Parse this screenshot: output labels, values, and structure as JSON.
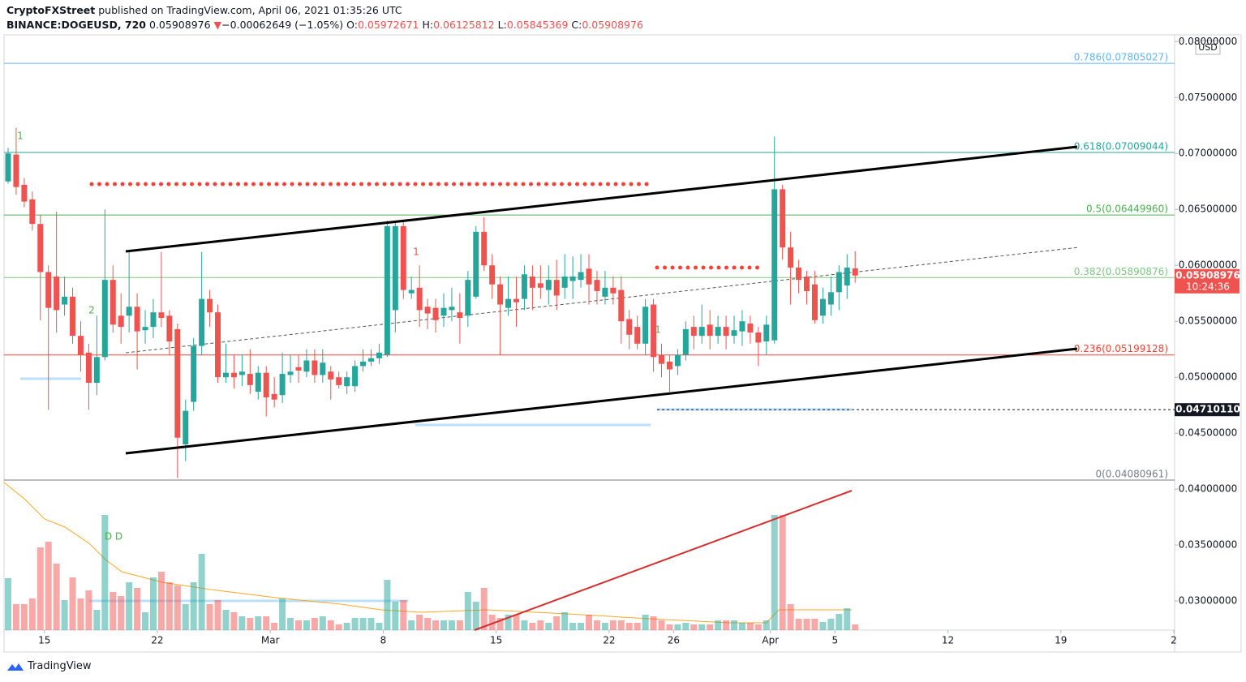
{
  "header": {
    "publisher": "CryptoFXStreet",
    "published": "published on TradingView.com, April 06, 2021 01:35:26 UTC"
  },
  "footer": {
    "brand": "TradingView"
  },
  "chart_data": {
    "type": "candlestick",
    "symbol": "BINANCE:DOGEUSD, 720",
    "change_arrow": "▼",
    "change": "−0.00062649 (−1.05%)",
    "ohlc_labels": [
      "O:",
      "H:",
      "L:",
      "C:"
    ],
    "currency": "USD",
    "countdown": "10:24:36",
    "up_color": "#26a69a",
    "down_color": "#ef5350",
    "xlim": [
      -0.5,
      144.6
    ],
    "xticks": [
      {
        "value": 4.5,
        "label": "15"
      },
      {
        "value": 18.5,
        "label": "22"
      },
      {
        "value": 32.5,
        "label": "Mar"
      },
      {
        "value": 46.5,
        "label": "8"
      },
      {
        "value": 60.5,
        "label": "15"
      },
      {
        "value": 74.5,
        "label": "22"
      },
      {
        "value": 82.5,
        "label": "26"
      },
      {
        "value": 94.5,
        "label": "Apr"
      },
      {
        "value": 102.5,
        "label": "5"
      },
      {
        "value": 116.5,
        "label": "12"
      },
      {
        "value": 130.5,
        "label": "19"
      },
      {
        "value": 144.5,
        "label": "2"
      }
    ],
    "ylim": [
      0.0274,
      0.0806
    ],
    "yticks": [
      {
        "value": 0.08,
        "label": "0.08000000"
      },
      {
        "value": 0.075,
        "label": "0.07500000"
      },
      {
        "value": 0.07,
        "label": "0.07000000"
      },
      {
        "value": 0.065,
        "label": "0.06500000"
      },
      {
        "value": 0.06,
        "label": "0.06000000"
      },
      {
        "value": 0.055,
        "label": "0.05500000"
      },
      {
        "value": 0.05,
        "label": "0.05000000"
      },
      {
        "value": 0.045,
        "label": "0.04500000"
      },
      {
        "value": 0.04,
        "label": "0.04000000"
      },
      {
        "value": 0.035,
        "label": "0.03500000"
      },
      {
        "value": 0.03,
        "label": "0.03000000"
      }
    ],
    "grid": false,
    "fib_levels": [
      {
        "value": 0.07805027,
        "label": "0.786(0.07805027)",
        "color": "#64b5f6"
      },
      {
        "value": 0.07009044,
        "label": "0.618(0.07009044)",
        "color": "#26a69a"
      },
      {
        "value": 0.0644996,
        "label": "0.5(0.06449960)",
        "color": "#4caf50"
      },
      {
        "value": 0.05890876,
        "label": "0.382(0.05890876)",
        "color": "#81c784"
      },
      {
        "value": 0.05199128,
        "label": "0.236(0.05199128)",
        "color": "#f44336"
      },
      {
        "value": 0.04080961,
        "label": "0(0.04080961)",
        "color": "#787b86"
      }
    ],
    "price_line": {
      "value": 0.0471011,
      "label": "0.04710110"
    },
    "td_labels": [
      "1",
      "2",
      "1",
      "1",
      "D D"
    ],
    "open": [
      0.0675,
      0.0699,
      0.0672,
      0.0659,
      0.0637,
      0.0594,
      0.059,
      0.0565,
      0.0572,
      0.0537,
      0.0522,
      0.0495,
      0.0518,
      0.0587,
      0.0555,
      0.0555,
      0.0563,
      0.0542,
      0.0545,
      0.0558,
      0.0555,
      0.0543,
      0.044,
      0.0478,
      0.0528,
      0.057,
      0.0558,
      0.05,
      0.0504,
      0.0502,
      0.0503,
      0.0487,
      0.0504,
      0.0485,
      0.0484,
      0.0502,
      0.0509,
      0.0505,
      0.0515,
      0.0502,
      0.0505,
      0.05,
      0.0492,
      0.0492,
      0.051,
      0.0514,
      0.0517,
      0.052,
      0.056,
      0.0635,
      0.0575,
      0.058,
      0.0563,
      0.0562,
      0.0555,
      0.056,
      0.0558,
      0.0555,
      0.0572,
      0.063,
      0.06,
      0.0583,
      0.0562,
      0.057,
      0.057,
      0.059,
      0.0584,
      0.0578,
      0.0587,
      0.058,
      0.0586,
      0.0587,
      0.0597,
      0.0587,
      0.0572,
      0.058,
      0.0578,
      0.0552,
      0.0545,
      0.053,
      0.0565,
      0.052,
      0.0514,
      0.051,
      0.052,
      0.0545,
      0.0537,
      0.0547,
      0.0537,
      0.0545,
      0.0537,
      0.0541,
      0.0548,
      0.054,
      0.0532,
      0.0533,
      0.0668,
      0.0616,
      0.0598,
      0.059,
      0.0583,
      0.0555,
      0.0565,
      0.0576,
      0.0582,
      0.05972671
    ],
    "high": [
      0.0705,
      0.0723,
      0.0678,
      0.0666,
      0.0645,
      0.06,
      0.0648,
      0.059,
      0.058,
      0.055,
      0.053,
      0.0555,
      0.065,
      0.06,
      0.0575,
      0.0612,
      0.0575,
      0.056,
      0.057,
      0.0612,
      0.056,
      0.0548,
      0.048,
      0.0535,
      0.0612,
      0.0578,
      0.0565,
      0.053,
      0.052,
      0.052,
      0.0525,
      0.051,
      0.051,
      0.05,
      0.0522,
      0.052,
      0.052,
      0.0525,
      0.0525,
      0.0525,
      0.051,
      0.0505,
      0.0505,
      0.0515,
      0.0525,
      0.0525,
      0.053,
      0.064,
      0.064,
      0.064,
      0.059,
      0.06,
      0.057,
      0.057,
      0.0575,
      0.058,
      0.0575,
      0.0595,
      0.0635,
      0.0643,
      0.061,
      0.059,
      0.059,
      0.059,
      0.06,
      0.06,
      0.06,
      0.06,
      0.0605,
      0.061,
      0.0608,
      0.061,
      0.061,
      0.0595,
      0.0595,
      0.059,
      0.059,
      0.056,
      0.0555,
      0.057,
      0.057,
      0.053,
      0.052,
      0.0525,
      0.055,
      0.0555,
      0.0565,
      0.056,
      0.0555,
      0.0555,
      0.0555,
      0.056,
      0.0555,
      0.0545,
      0.0555,
      0.0715,
      0.0672,
      0.063,
      0.0605,
      0.0595,
      0.0595,
      0.058,
      0.059,
      0.06,
      0.061,
      0.06125812
    ],
    "low": [
      0.0673,
      0.0663,
      0.0652,
      0.0631,
      0.0551,
      0.0471,
      0.054,
      0.0555,
      0.053,
      0.0505,
      0.0471,
      0.0484,
      0.0515,
      0.054,
      0.053,
      0.054,
      0.0507,
      0.053,
      0.0535,
      0.0545,
      0.052,
      0.041,
      0.0425,
      0.047,
      0.052,
      0.0545,
      0.0495,
      0.0495,
      0.049,
      0.0492,
      0.0485,
      0.048,
      0.0465,
      0.0473,
      0.0477,
      0.0495,
      0.0495,
      0.05,
      0.0495,
      0.0495,
      0.048,
      0.049,
      0.0485,
      0.0487,
      0.0505,
      0.051,
      0.0512,
      0.0518,
      0.054,
      0.057,
      0.057,
      0.0545,
      0.0543,
      0.054,
      0.0545,
      0.055,
      0.053,
      0.0545,
      0.057,
      0.0595,
      0.057,
      0.052,
      0.0555,
      0.0545,
      0.056,
      0.056,
      0.057,
      0.0565,
      0.056,
      0.057,
      0.057,
      0.058,
      0.0565,
      0.0565,
      0.0565,
      0.0565,
      0.053,
      0.0525,
      0.0525,
      0.052,
      0.0505,
      0.05,
      0.0487,
      0.0502,
      0.0515,
      0.0525,
      0.053,
      0.0525,
      0.053,
      0.0525,
      0.053,
      0.0528,
      0.053,
      0.051,
      0.052,
      0.053,
      0.0605,
      0.0565,
      0.0575,
      0.0565,
      0.0548,
      0.0548,
      0.0555,
      0.056,
      0.057,
      0.05845369
    ],
    "close": [
      0.07,
      0.067,
      0.0657,
      0.0637,
      0.0594,
      0.0562,
      0.056,
      0.0572,
      0.0537,
      0.052,
      0.0495,
      0.0518,
      0.0587,
      0.0547,
      0.0545,
      0.0563,
      0.0541,
      0.0545,
      0.0558,
      0.0553,
      0.0532,
      0.0446,
      0.047,
      0.0528,
      0.057,
      0.0558,
      0.05,
      0.0504,
      0.05,
      0.0505,
      0.0493,
      0.0504,
      0.0482,
      0.048,
      0.0503,
      0.0505,
      0.0506,
      0.0515,
      0.0502,
      0.0513,
      0.0498,
      0.0493,
      0.05,
      0.051,
      0.0514,
      0.0517,
      0.0522,
      0.0635,
      0.0635,
      0.0578,
      0.0578,
      0.056,
      0.0557,
      0.0551,
      0.0562,
      0.0563,
      0.0553,
      0.0587,
      0.063,
      0.06,
      0.0583,
      0.0565,
      0.057,
      0.0567,
      0.0592,
      0.058,
      0.058,
      0.0587,
      0.0573,
      0.059,
      0.059,
      0.0594,
      0.0583,
      0.0577,
      0.058,
      0.0575,
      0.055,
      0.0538,
      0.053,
      0.0563,
      0.0518,
      0.0512,
      0.0507,
      0.052,
      0.0543,
      0.0537,
      0.0545,
      0.0537,
      0.0545,
      0.0537,
      0.0542,
      0.055,
      0.054,
      0.0531,
      0.0547,
      0.0668,
      0.0616,
      0.0598,
      0.0587,
      0.0577,
      0.0551,
      0.057,
      0.0576,
      0.0594,
      0.0598,
      0.05908976
    ],
    "volume": [
      64,
      32,
      32,
      39,
      102,
      109,
      82,
      37,
      65,
      39,
      49,
      25,
      142,
      47,
      42,
      59,
      52,
      22,
      65,
      72,
      59,
      55,
      32,
      59,
      94,
      32,
      37,
      25,
      22,
      17,
      15,
      17,
      17,
      9,
      39,
      15,
      12,
      12,
      15,
      17,
      12,
      7,
      9,
      15,
      15,
      15,
      9,
      62,
      35,
      37,
      12,
      19,
      15,
      12,
      12,
      12,
      12,
      47,
      35,
      52,
      19,
      15,
      19,
      19,
      12,
      9,
      12,
      9,
      17,
      22,
      9,
      9,
      19,
      12,
      9,
      12,
      12,
      9,
      9,
      19,
      17,
      12,
      7,
      7,
      9,
      7,
      7,
      7,
      12,
      12,
      12,
      9,
      9,
      7,
      12,
      142,
      142,
      32,
      14,
      14,
      14,
      10,
      14,
      20,
      27,
      7
    ]
  }
}
